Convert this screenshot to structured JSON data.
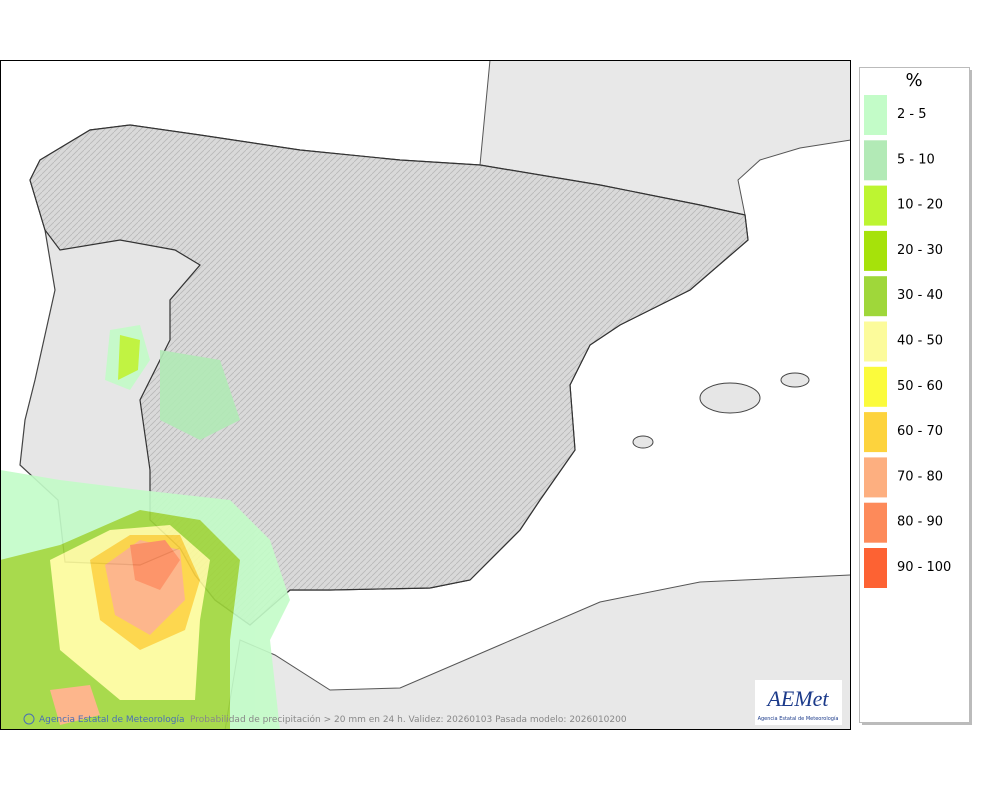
{
  "legend": {
    "title": "%",
    "items": [
      {
        "label": "2 - 5",
        "color": "#c3fcc8"
      },
      {
        "label": "5 - 10",
        "color": "#b2eab6"
      },
      {
        "label": "10 - 20",
        "color": "#bdf531"
      },
      {
        "label": "20 - 30",
        "color": "#a6e20a"
      },
      {
        "label": "30 - 40",
        "color": "#9fd73a"
      },
      {
        "label": "40 - 50",
        "color": "#fcfb9b"
      },
      {
        "label": "50 - 60",
        "color": "#fbfb3c"
      },
      {
        "label": "60 - 70",
        "color": "#fdd33d"
      },
      {
        "label": "70 - 80",
        "color": "#fdaf80"
      },
      {
        "label": "80 - 90",
        "color": "#fd8a5a"
      },
      {
        "label": "90 - 100",
        "color": "#fd6233"
      }
    ]
  },
  "footer": {
    "credit": "Agencia Estatal de Meteorología",
    "caption": "Probabilidad de precipitación > 20 mm en 24 h. Validez: 20260103 Pasada modelo: 2026010200"
  },
  "logo": {
    "name": "AEMet",
    "subtitle": "Agencia Estatal de Meteorología"
  }
}
